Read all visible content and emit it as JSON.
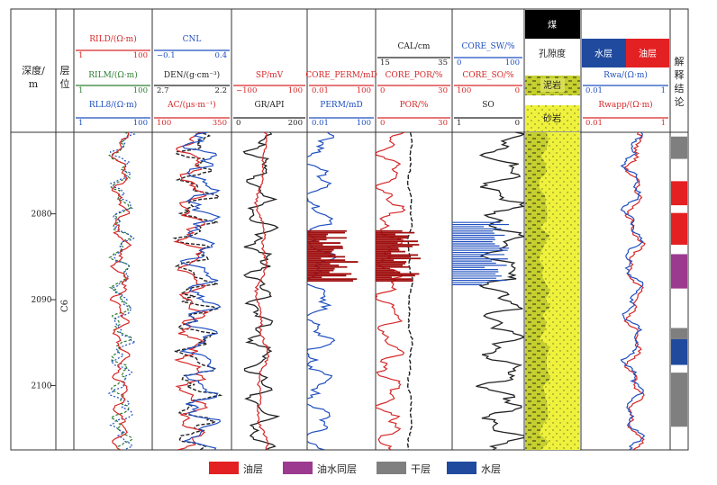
{
  "chart_data": {
    "type": "line",
    "title": "",
    "depth_axis": {
      "label_line1": "深度/",
      "label_line2": "m",
      "range": [
        2070.5,
        2107.5
      ],
      "ticks": [
        2080,
        2090,
        2100
      ]
    },
    "layer": {
      "header_line1": "层",
      "header_line2": "位",
      "name": "C6"
    },
    "tracks": [
      {
        "id": "resistivity",
        "curves": [
          {
            "name": "RILD/(Ω·m)",
            "min": "1",
            "max": "100",
            "color": "#d62728"
          },
          {
            "name": "RILM/(Ω·m)",
            "min": "1",
            "max": "100",
            "color": "#2e7d32"
          },
          {
            "name": "RLL8/(Ω·m)",
            "min": "1",
            "max": "100",
            "color": "#1f4fbf"
          }
        ]
      },
      {
        "id": "porosity_logs",
        "curves": [
          {
            "name": "CNL",
            "min": "−0.1",
            "max": "0.4",
            "color": "#1f4fbf"
          },
          {
            "name": "DEN/(g·cm⁻³)",
            "min": "2.7",
            "max": "2.2",
            "color": "#222222"
          },
          {
            "name": "AC/(μs·m⁻¹)",
            "min": "100",
            "max": "350",
            "color": "#d62728"
          }
        ]
      },
      {
        "id": "lithology_logs",
        "curves": [
          {
            "name": "SP/mV",
            "min": "−100",
            "max": "100",
            "color": "#d62728"
          },
          {
            "name": "GR/API",
            "min": "0",
            "max": "200",
            "color": "#222222"
          }
        ]
      },
      {
        "id": "permeability",
        "curves": [
          {
            "name": "CORE_PERM/mD",
            "min": "0.01",
            "max": "100",
            "color": "#d62728"
          },
          {
            "name": "PERM/mD",
            "min": "0.01",
            "max": "100",
            "color": "#1f4fbf"
          }
        ]
      },
      {
        "id": "porosity",
        "curves": [
          {
            "name": "CAL/cm",
            "min": "15",
            "max": "35",
            "color": "#222222"
          },
          {
            "name": "CORE_POR/%",
            "min": "0",
            "max": "30",
            "color": "#d62728"
          },
          {
            "name": "POR/%",
            "min": "0",
            "max": "30",
            "color": "#d62728"
          }
        ]
      },
      {
        "id": "saturation",
        "curves": [
          {
            "name": "CORE_SW/%",
            "min": "0",
            "max": "100",
            "color": "#1f4fbf"
          },
          {
            "name": "CORE_SO/%",
            "min": "100",
            "max": "0",
            "color": "#d62728"
          },
          {
            "name": "SO",
            "min": "1",
            "max": "0",
            "color": "#222222"
          }
        ]
      },
      {
        "id": "lithology_column",
        "legend": [
          "煤",
          "孔隙度",
          "泥岩",
          "砂岩"
        ]
      },
      {
        "id": "ratio",
        "legend_water": "水层",
        "legend_oil": "油层",
        "curves": [
          {
            "name": "Rwa/(Ω·m)",
            "min": "0.01",
            "max": "1",
            "color": "#1f4fbf"
          },
          {
            "name": "Rwapp/(Ω·m)",
            "min": "0.01",
            "max": "1",
            "color": "#d62728"
          }
        ]
      },
      {
        "id": "interpretation",
        "header": [
          "解",
          "释",
          "结",
          "论"
        ],
        "intervals": [
          {
            "top": 2071.0,
            "bottom": 2073.6,
            "result": "干层"
          },
          {
            "top": 2076.2,
            "bottom": 2079.0,
            "result": "油层"
          },
          {
            "top": 2079.9,
            "bottom": 2083.6,
            "result": "油层"
          },
          {
            "top": 2084.7,
            "bottom": 2088.7,
            "result": "油水同层"
          },
          {
            "top": 2093.3,
            "bottom": 2094.6,
            "result": "干层"
          },
          {
            "top": 2094.6,
            "bottom": 2097.6,
            "result": "水层"
          },
          {
            "top": 2098.5,
            "bottom": 2104.8,
            "result": "干层"
          }
        ]
      }
    ],
    "legend": [
      {
        "label": "油层",
        "color": "#e32022"
      },
      {
        "label": "油水同层",
        "color": "#9b3a8f"
      },
      {
        "label": "干层",
        "color": "#7f7f7f"
      },
      {
        "label": "水层",
        "color": "#1f4a9e"
      }
    ]
  }
}
